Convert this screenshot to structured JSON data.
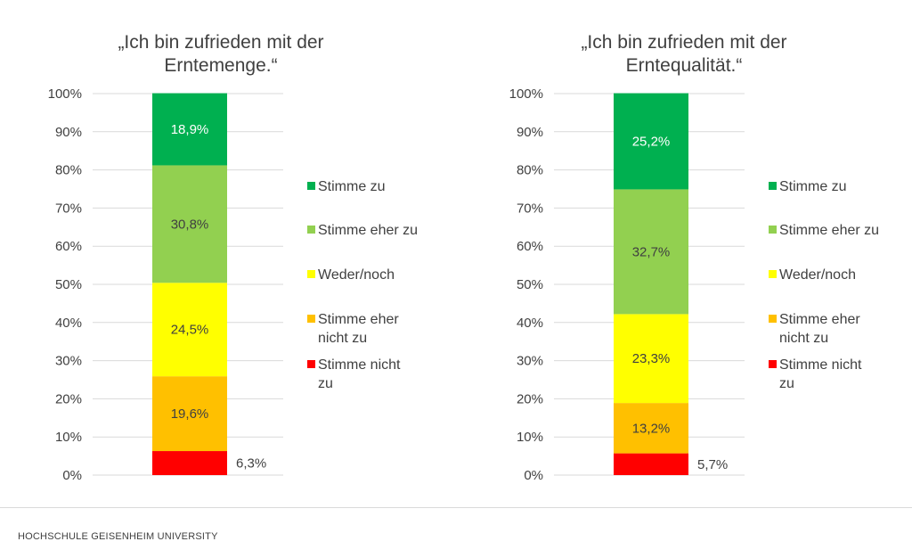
{
  "chart_data": [
    {
      "type": "bar",
      "stacked": true,
      "title": "„Ich bin zufrieden mit der Erntemenge.“",
      "title_lines": [
        "„Ich bin zufrieden mit der",
        "Erntemenge.“"
      ],
      "xlabel": "",
      "ylabel": "",
      "ylim": [
        0,
        100
      ],
      "yticks": [
        "0%",
        "10%",
        "20%",
        "30%",
        "40%",
        "50%",
        "60%",
        "70%",
        "80%",
        "90%",
        "100%"
      ],
      "categories": [
        ""
      ],
      "series": [
        {
          "name": "Stimme nicht zu",
          "values": [
            6.3
          ],
          "label": "6,3%",
          "color": "#ff0000"
        },
        {
          "name": "Stimme eher nicht zu",
          "values": [
            19.6
          ],
          "label": "19,6%",
          "color": "#ffc000"
        },
        {
          "name": "Weder/noch",
          "values": [
            24.5
          ],
          "label": "24,5%",
          "color": "#ffff00"
        },
        {
          "name": "Stimme eher zu",
          "values": [
            30.8
          ],
          "label": "30,8%",
          "color": "#92d050"
        },
        {
          "name": "Stimme zu",
          "values": [
            18.9
          ],
          "label": "18,9%",
          "color": "#00b050"
        }
      ],
      "legend": [
        {
          "name": "Stimme zu",
          "lines": [
            "Stimme zu"
          ],
          "color": "#00b050"
        },
        {
          "name": "Stimme eher zu",
          "lines": [
            "Stimme eher zu"
          ],
          "color": "#92d050"
        },
        {
          "name": "Weder/noch",
          "lines": [
            "Weder/noch"
          ],
          "color": "#ffff00"
        },
        {
          "name": "Stimme eher nicht zu",
          "lines": [
            "Stimme eher",
            "nicht zu"
          ],
          "color": "#ffc000"
        },
        {
          "name": "Stimme nicht zu",
          "lines": [
            "Stimme  nicht",
            "zu"
          ],
          "color": "#ff0000"
        }
      ],
      "legend_position": "right"
    },
    {
      "type": "bar",
      "stacked": true,
      "title": "„Ich bin zufrieden mit der Erntequalität.“",
      "title_lines": [
        "„Ich bin zufrieden mit der",
        "Erntequalität.“"
      ],
      "xlabel": "",
      "ylabel": "",
      "ylim": [
        0,
        100
      ],
      "yticks": [
        "0%",
        "10%",
        "20%",
        "30%",
        "40%",
        "50%",
        "60%",
        "70%",
        "80%",
        "90%",
        "100%"
      ],
      "categories": [
        ""
      ],
      "series": [
        {
          "name": "Stimme nicht zu",
          "values": [
            5.7
          ],
          "label": "5,7%",
          "color": "#ff0000"
        },
        {
          "name": "Stimme eher nicht zu",
          "values": [
            13.2
          ],
          "label": "13,2%",
          "color": "#ffc000"
        },
        {
          "name": "Weder/noch",
          "values": [
            23.3
          ],
          "label": "23,3%",
          "color": "#ffff00"
        },
        {
          "name": "Stimme eher zu",
          "values": [
            32.7
          ],
          "label": "32,7%",
          "color": "#92d050"
        },
        {
          "name": "Stimme zu",
          "values": [
            25.2
          ],
          "label": "25,2%",
          "color": "#00b050"
        }
      ],
      "legend": [
        {
          "name": "Stimme zu",
          "lines": [
            "Stimme zu"
          ],
          "color": "#00b050"
        },
        {
          "name": "Stimme eher zu",
          "lines": [
            "Stimme eher zu"
          ],
          "color": "#92d050"
        },
        {
          "name": "Weder/noch",
          "lines": [
            "Weder/noch"
          ],
          "color": "#ffff00"
        },
        {
          "name": "Stimme eher nicht zu",
          "lines": [
            "Stimme eher",
            "nicht zu"
          ],
          "color": "#ffc000"
        },
        {
          "name": "Stimme nicht zu",
          "lines": [
            "Stimme  nicht",
            "zu"
          ],
          "color": "#ff0000"
        }
      ],
      "legend_position": "right"
    }
  ],
  "footer": {
    "organization": "HOCHSCHULE GEISENHEIM UNIVERSITY"
  }
}
